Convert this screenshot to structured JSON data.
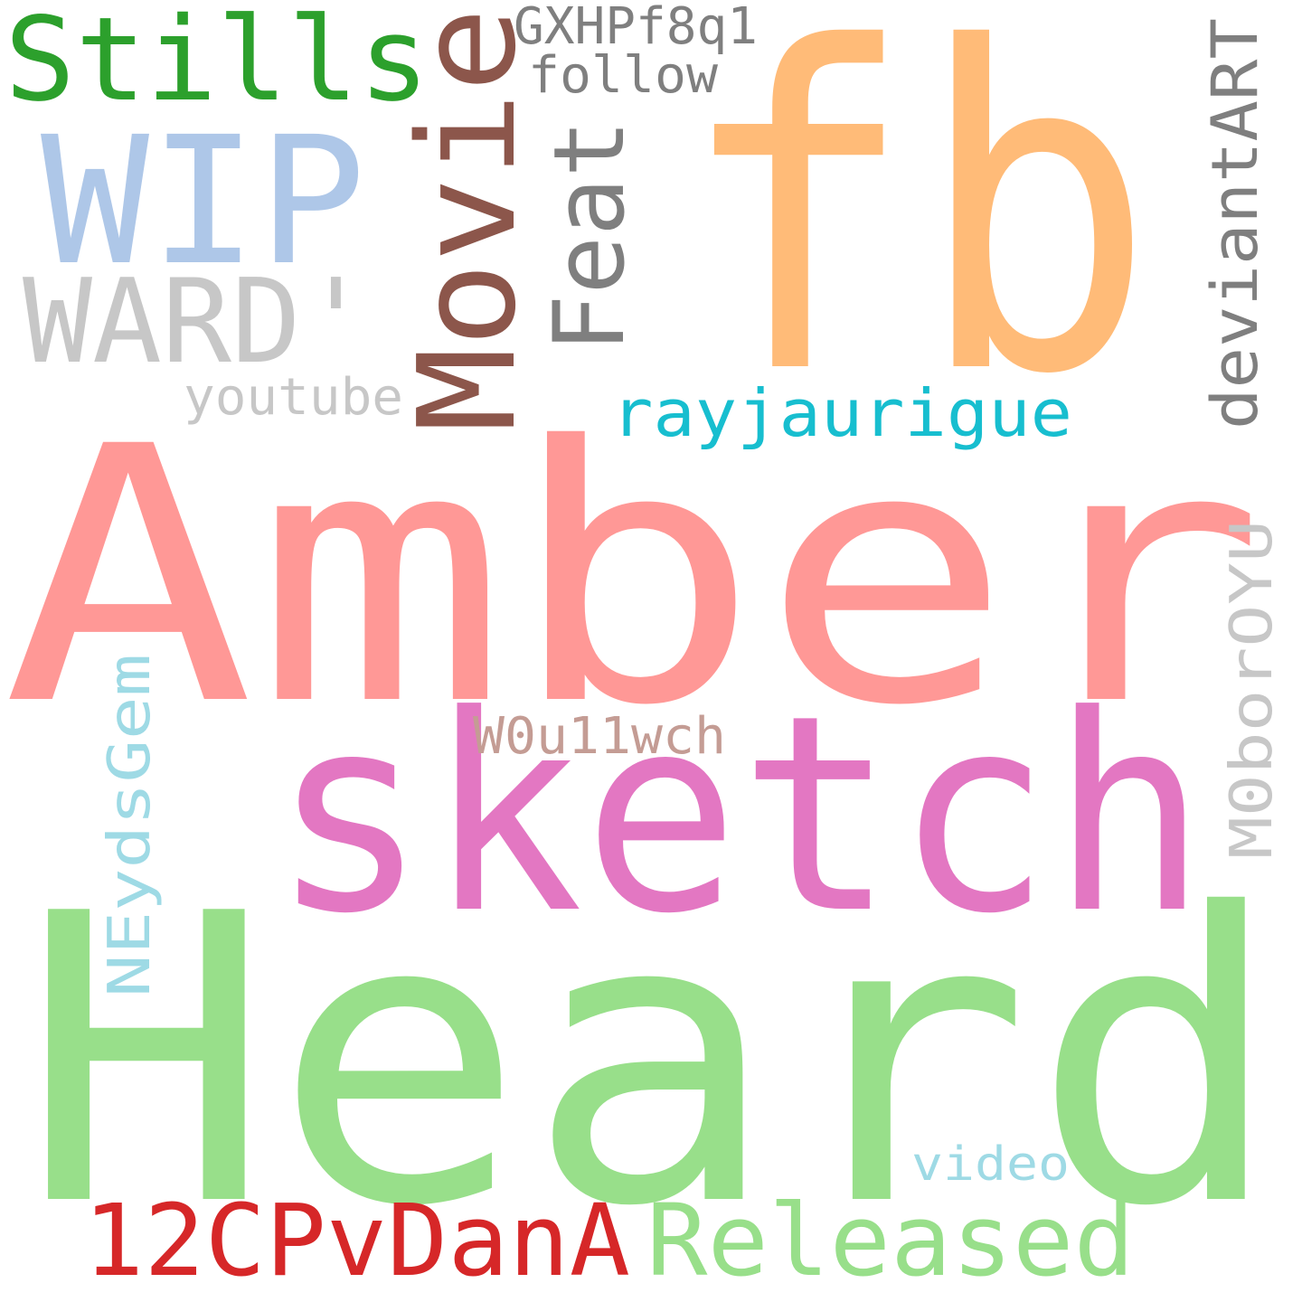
{
  "words": [
    {
      "text": "Amber",
      "color": "#ff9896"
    },
    {
      "text": "Heard",
      "color": "#98df8a"
    },
    {
      "text": "fb",
      "color": "#ffbb78"
    },
    {
      "text": "sketch",
      "color": "#e377c2"
    },
    {
      "text": "Movie",
      "color": "#8c564b"
    },
    {
      "text": "WIP",
      "color": "#aec7e8"
    },
    {
      "text": "Stills",
      "color": "#2ca02c"
    },
    {
      "text": "WARD'",
      "color": "#c7c7c7"
    },
    {
      "text": "Feat",
      "color": "#7f7f7f"
    },
    {
      "text": "deviantART",
      "color": "#7f7f7f"
    },
    {
      "text": "12CPvDanA",
      "color": "#d62728"
    },
    {
      "text": "Released",
      "color": "#98df8a"
    },
    {
      "text": "rayjaurigue",
      "color": "#17becf"
    },
    {
      "text": "NEydsGem",
      "color": "#9edae5"
    },
    {
      "text": "M0borOYU",
      "color": "#c7c7c7"
    },
    {
      "text": "GXHPf8q1",
      "color": "#7f7f7f"
    },
    {
      "text": "follow",
      "color": "#7f7f7f"
    },
    {
      "text": "youtube",
      "color": "#c7c7c7"
    },
    {
      "text": "W0u11wch",
      "color": "#c49c94"
    },
    {
      "text": "video",
      "color": "#9edae5"
    }
  ]
}
